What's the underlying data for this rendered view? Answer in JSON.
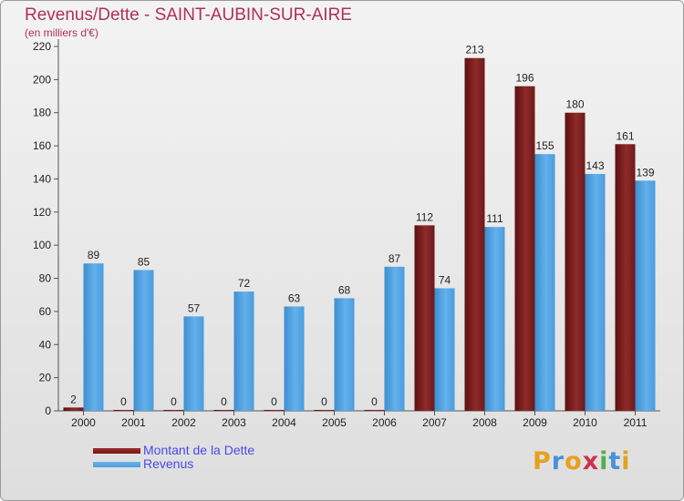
{
  "title": "Revenus/Dette - SAINT-AUBIN-SUR-AIRE",
  "subtitle": "(en milliers d'€)",
  "logo": {
    "text": "Proxiti",
    "letters": [
      {
        "ch": "P",
        "color": "#e8a020"
      },
      {
        "ch": "r",
        "color": "#4a90d9"
      },
      {
        "ch": "o",
        "color": "#e8a020"
      },
      {
        "ch": "x",
        "color": "#d03050"
      },
      {
        "ch": "i",
        "color": "#50b050"
      },
      {
        "ch": "t",
        "color": "#4a90d9"
      },
      {
        "ch": "i",
        "color": "#e8a020"
      }
    ]
  },
  "colors": {
    "dette": "#7a1a1a",
    "revenus": "#4d9fdc",
    "title": "#b0305a",
    "legend_text": "#4a4ae6"
  },
  "chart_data": {
    "type": "bar",
    "categories": [
      "2000",
      "2001",
      "2002",
      "2003",
      "2004",
      "2005",
      "2006",
      "2007",
      "2008",
      "2009",
      "2010",
      "2011"
    ],
    "series": [
      {
        "name": "Montant de la Dette",
        "values": [
          2,
          0,
          0,
          0,
          0,
          0,
          0,
          112,
          213,
          196,
          180,
          161
        ]
      },
      {
        "name": "Revenus",
        "values": [
          89,
          85,
          57,
          72,
          63,
          68,
          87,
          74,
          111,
          155,
          143,
          139
        ]
      }
    ],
    "yticks": [
      0,
      20,
      40,
      60,
      80,
      100,
      120,
      140,
      160,
      180,
      200,
      220
    ],
    "ylim": [
      0,
      220
    ],
    "grid": false,
    "legend_position": "bottom-left"
  }
}
